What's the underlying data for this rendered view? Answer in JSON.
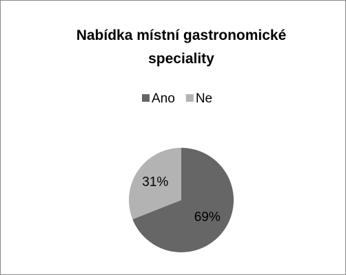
{
  "chart_data": {
    "type": "pie",
    "title": "Nabídka místní gastronomické speciality",
    "categories": [
      "Ano",
      "Ne"
    ],
    "values": [
      69,
      31
    ],
    "value_labels": [
      "69%",
      "31%"
    ],
    "colors": [
      "#666666",
      "#b3b3b3"
    ],
    "legend": "top"
  }
}
